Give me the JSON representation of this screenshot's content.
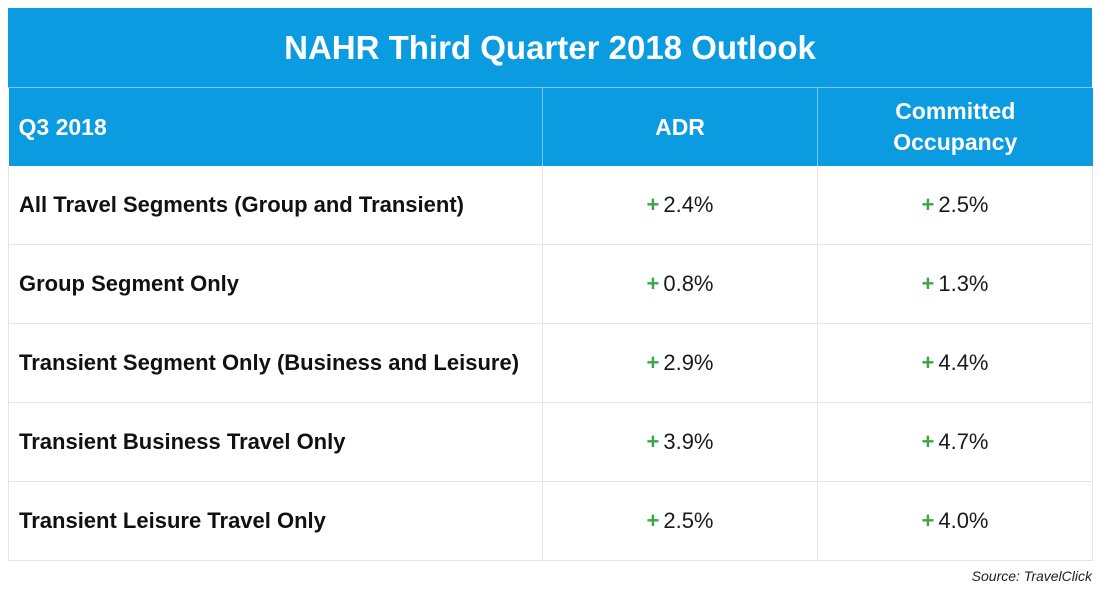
{
  "title": "NAHR Third Quarter 2018 Outlook",
  "headers": {
    "segment": "Q3 2018",
    "adr": "ADR",
    "occupancy_line1": "Committed",
    "occupancy_line2": "Occupancy"
  },
  "plus_symbol": "+",
  "rows": [
    {
      "segment": "All Travel Segments (Group and Transient)",
      "adr": "2.4%",
      "occupancy": "2.5%"
    },
    {
      "segment": "Group Segment Only",
      "adr": "0.8%",
      "occupancy": "1.3%"
    },
    {
      "segment": "Transient Segment Only (Business and Leisure)",
      "adr": "2.9%",
      "occupancy": "4.4%"
    },
    {
      "segment": "Transient Business Travel Only",
      "adr": "3.9%",
      "occupancy": "4.7%"
    },
    {
      "segment": "Transient Leisure Travel Only",
      "adr": "2.5%",
      "occupancy": "4.0%"
    }
  ],
  "source": "Source: TravelClick",
  "colors": {
    "header_blue": "#0a9be0",
    "plus_green": "#3aa745"
  }
}
